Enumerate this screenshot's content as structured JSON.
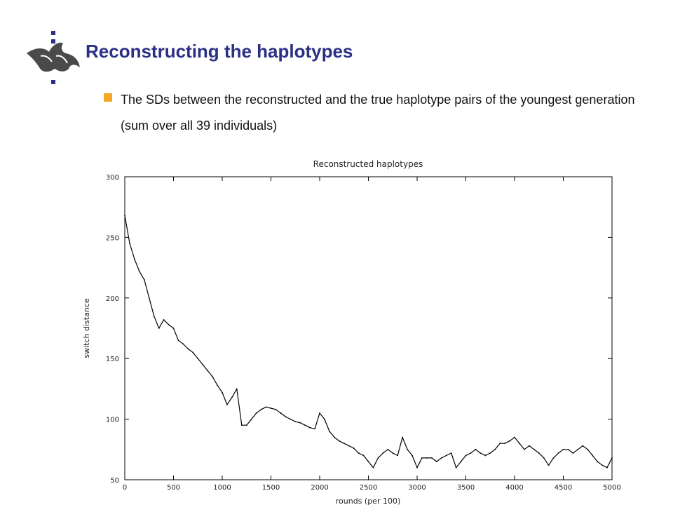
{
  "slide": {
    "title": "Reconstructing the haplotypes",
    "bullet": "The SDs between the reconstructed and the true haplotype pairs of the youngest generation (sum over all 39 individuals)"
  },
  "logo": {
    "icon": "flame-logo-icon",
    "color": "#2b2f86"
  },
  "colors": {
    "title": "#2b2f86",
    "bullet": "#f5a623",
    "series": "#000000"
  },
  "chart_data": {
    "type": "line",
    "title": "Reconstructed haplotypes",
    "xlabel": "rounds (per 100)",
    "ylabel": "switch distance",
    "xlim": [
      0,
      5000
    ],
    "ylim": [
      50,
      300
    ],
    "xticks": [
      0,
      500,
      1000,
      1500,
      2000,
      2500,
      3000,
      3500,
      4000,
      4500,
      5000
    ],
    "yticks": [
      50,
      100,
      150,
      200,
      250,
      300
    ],
    "grid": false,
    "series": [
      {
        "x": [
          0,
          50,
          100,
          150,
          200,
          250,
          300,
          350,
          400,
          450,
          500,
          550,
          600,
          650,
          700,
          750,
          800,
          850,
          900,
          950,
          1000,
          1050,
          1100,
          1150,
          1200,
          1250,
          1300,
          1350,
          1400,
          1450,
          1500,
          1550,
          1600,
          1650,
          1700,
          1750,
          1800,
          1850,
          1900,
          1950,
          2000,
          2050,
          2100,
          2150,
          2200,
          2250,
          2300,
          2350,
          2400,
          2450,
          2500,
          2550,
          2600,
          2650,
          2700,
          2750,
          2800,
          2850,
          2900,
          2950,
          3000,
          3050,
          3100,
          3150,
          3200,
          3250,
          3300,
          3350,
          3400,
          3450,
          3500,
          3550,
          3600,
          3650,
          3700,
          3750,
          3800,
          3850,
          3900,
          3950,
          4000,
          4050,
          4100,
          4150,
          4200,
          4250,
          4300,
          4350,
          4400,
          4450,
          4500,
          4550,
          4600,
          4650,
          4700,
          4750,
          4800,
          4850,
          4900,
          4950,
          5000
        ],
        "values": [
          268,
          245,
          232,
          222,
          215,
          200,
          185,
          175,
          182,
          178,
          175,
          165,
          162,
          158,
          155,
          150,
          145,
          140,
          135,
          128,
          122,
          112,
          118,
          125,
          95,
          95,
          100,
          105,
          108,
          110,
          109,
          108,
          105,
          102,
          100,
          98,
          97,
          95,
          93,
          92,
          105,
          100,
          90,
          85,
          82,
          80,
          78,
          76,
          72,
          70,
          65,
          60,
          68,
          72,
          75,
          72,
          70,
          85,
          75,
          70,
          60,
          68,
          68,
          68,
          65,
          68,
          70,
          72,
          60,
          65,
          70,
          72,
          75,
          72,
          70,
          72,
          75,
          80,
          80,
          82,
          85,
          80,
          75,
          78,
          75,
          72,
          68,
          62,
          68,
          72,
          75,
          75,
          72,
          75,
          78,
          75,
          70,
          65,
          62,
          60,
          68
        ]
      }
    ]
  }
}
